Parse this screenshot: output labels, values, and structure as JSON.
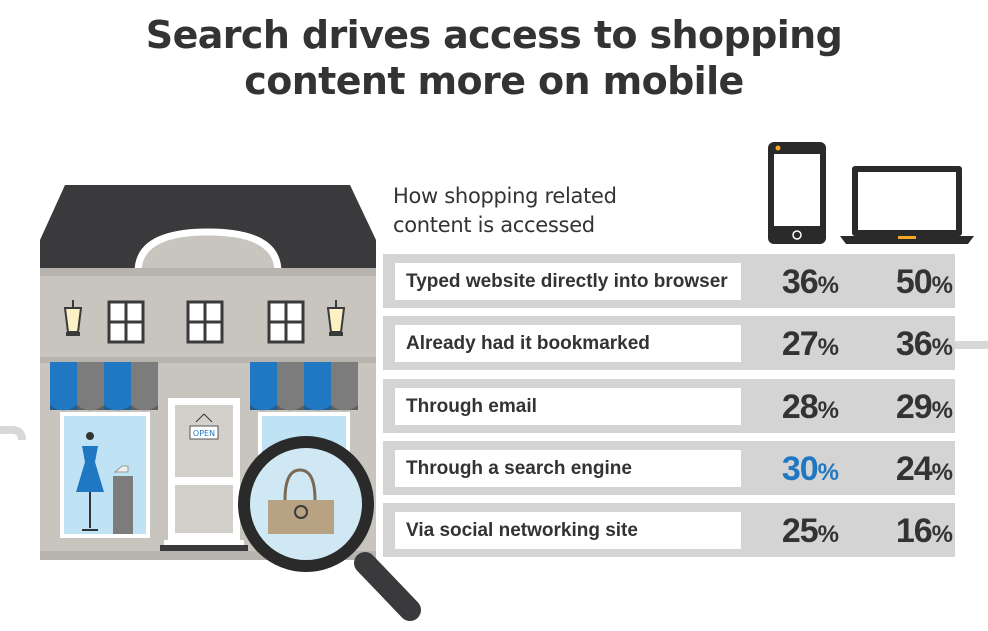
{
  "title": {
    "line1": "Search drives access to shopping",
    "line2": "content more on mobile"
  },
  "subtitle": {
    "line1": "How shopping related",
    "line2": "content is accessed"
  },
  "icons": {
    "mobile": "smartphone-icon",
    "desktop": "laptop-icon",
    "illustration": "storefront-illustration",
    "search": "magnifying-glass-icon"
  },
  "store_sign": "OPEN",
  "colors": {
    "highlight": "#1f78c1",
    "text": "#333333",
    "row_background": "#d4d4d4",
    "awning_blue": "#1f78c1",
    "roof": "#3a3a3c",
    "wall": "#c8c4be"
  },
  "rows": [
    {
      "label": "Typed website directly into browser",
      "mobile": "36",
      "desktop": "50",
      "sign": "%",
      "highlight_mobile": false
    },
    {
      "label": "Already had it bookmarked",
      "mobile": "27",
      "desktop": "36",
      "sign": "%",
      "highlight_mobile": false
    },
    {
      "label": "Through email",
      "mobile": "28",
      "desktop": "29",
      "sign": "%",
      "highlight_mobile": false
    },
    {
      "label": "Through a search engine",
      "mobile": "30",
      "desktop": "24",
      "sign": "%",
      "highlight_mobile": true
    },
    {
      "label": "Via social networking site",
      "mobile": "25",
      "desktop": "16",
      "sign": "%",
      "highlight_mobile": false
    }
  ]
}
